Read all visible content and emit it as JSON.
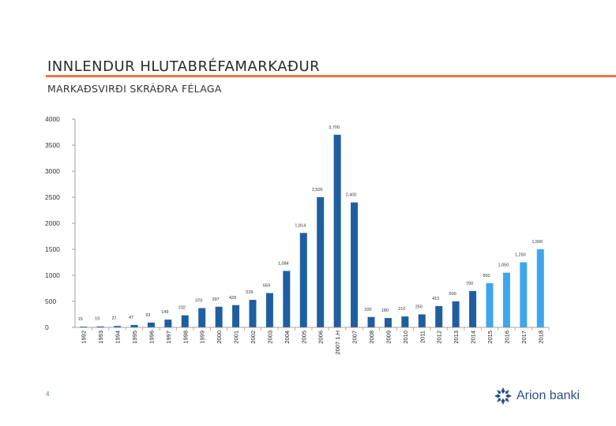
{
  "header": {
    "title": "INNLENDUR HLUTABRÉFAMARKAÐUR",
    "subtitle": "MARKAÐSVIRÐI SKRÁÐRA FÉLAGA"
  },
  "footer": {
    "page_number": "4",
    "logo_text": "Arion banki"
  },
  "colors": {
    "actual": "#1f5fa0",
    "projection": "#3ea6ee",
    "accent_rule": "#e8794a",
    "logo": "#2a4f8c"
  },
  "chart_data": {
    "type": "bar",
    "categories": [
      "1992",
      "1993",
      "1994",
      "1995",
      "1996",
      "1997",
      "1998",
      "1999",
      "2000",
      "2001",
      "2002",
      "2003",
      "2004",
      "2005",
      "2006",
      "2007 1.H",
      "2007",
      "2008",
      "2009",
      "2010",
      "2011",
      "2012",
      "2013",
      "2014",
      "2015",
      "2016",
      "2017",
      "2018"
    ],
    "values": [
      15,
      19,
      27,
      47,
      93,
      149,
      232,
      370,
      397,
      428,
      529,
      659,
      1084,
      1814,
      2500,
      3700,
      2400,
      200,
      180,
      210,
      250,
      410,
      500,
      700,
      850,
      1050,
      1250,
      1500
    ],
    "data_labels": [
      "15",
      "19",
      "27",
      "47",
      "93",
      "149",
      "232",
      "370",
      "397",
      "428",
      "529",
      "659",
      "1,084",
      "1,814",
      "2,500",
      "3,700",
      "2,400",
      "200",
      "180",
      "210",
      "250",
      "410",
      "500",
      "700",
      "850",
      "1,050",
      "1,250",
      "1,500"
    ],
    "series_style": [
      "actual",
      "actual",
      "actual",
      "actual",
      "actual",
      "actual",
      "actual",
      "actual",
      "actual",
      "actual",
      "actual",
      "actual",
      "actual",
      "actual",
      "actual",
      "actual",
      "actual",
      "actual",
      "actual",
      "actual",
      "actual",
      "actual",
      "actual",
      "actual",
      "projection",
      "projection",
      "projection",
      "projection"
    ],
    "y_ticks": [
      0,
      500,
      1000,
      1500,
      2000,
      2500,
      3000,
      3500,
      4000
    ],
    "y_tick_labels": [
      "0",
      "500",
      "1000",
      "1500",
      "2000",
      "2500",
      "3000",
      "3500",
      "4000"
    ],
    "ylim": [
      0,
      4000
    ],
    "grid": false,
    "legend": "none"
  }
}
